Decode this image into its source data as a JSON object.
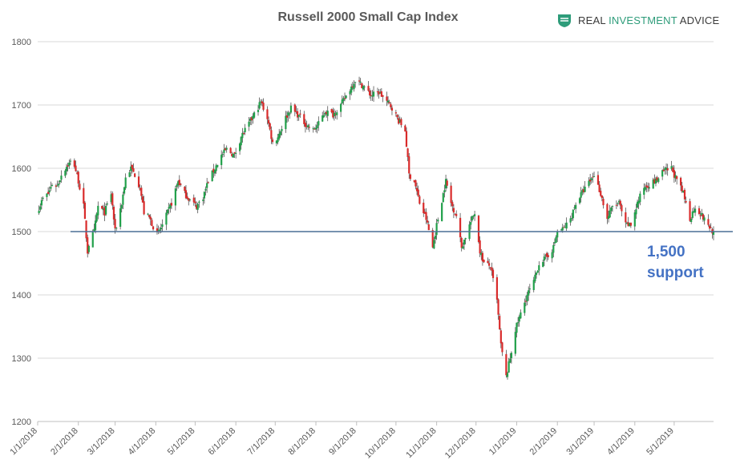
{
  "logo": {
    "brand_plain": "REAL ",
    "brand_accent": "INVESTMENT",
    "brand_rest": " ADVICE"
  },
  "colors": {
    "up": "#21a04a",
    "down": "#d92b2b",
    "support_line": "#4a6f95",
    "annotation": "#4472c4",
    "grid": "#d9d9d9"
  },
  "chart_data": {
    "type": "candlestick",
    "title": "Russell 2000 Small Cap Index",
    "ylim": [
      1200,
      1800
    ],
    "yticks": [
      1200,
      1300,
      1400,
      1500,
      1600,
      1700,
      1800
    ],
    "ytick_labels": [
      "1200",
      "1300",
      "1400",
      "1500",
      "1600",
      "1700",
      "1800"
    ],
    "xlim": [
      "2018-01-01",
      "2019-05-31"
    ],
    "xticks": [
      "2018-01-01",
      "2018-02-01",
      "2018-03-01",
      "2018-04-01",
      "2018-05-01",
      "2018-06-01",
      "2018-07-01",
      "2018-08-01",
      "2018-09-01",
      "2018-10-01",
      "2018-11-01",
      "2018-12-01",
      "2019-01-01",
      "2019-02-01",
      "2019-03-01",
      "2019-04-01",
      "2019-05-01"
    ],
    "xtick_labels": [
      "1/1/2018",
      "2/1/2018",
      "3/1/2018",
      "4/1/2018",
      "5/1/2018",
      "6/1/2018",
      "7/1/2018",
      "8/1/2018",
      "9/1/2018",
      "10/1/2018",
      "11/1/2018",
      "12/1/2018",
      "1/1/2019",
      "2/1/2019",
      "3/1/2019",
      "4/1/2019",
      "5/1/2019"
    ],
    "grid": "horizontal",
    "support": {
      "value": 1500,
      "label_line1": "1,500",
      "label_line2": "support"
    },
    "series": [
      {
        "close_path": [
          [
            "2018-01-02",
            1538
          ],
          [
            "2018-01-05",
            1552
          ],
          [
            "2018-01-09",
            1560
          ],
          [
            "2018-01-12",
            1575
          ],
          [
            "2018-01-16",
            1572
          ],
          [
            "2018-01-19",
            1590
          ],
          [
            "2018-01-23",
            1603
          ],
          [
            "2018-01-26",
            1610
          ],
          [
            "2018-01-29",
            1605
          ],
          [
            "2018-02-01",
            1580
          ],
          [
            "2018-02-05",
            1540
          ],
          [
            "2018-02-08",
            1468
          ],
          [
            "2018-02-09",
            1480
          ],
          [
            "2018-02-13",
            1500
          ],
          [
            "2018-02-16",
            1540
          ],
          [
            "2018-02-21",
            1530
          ],
          [
            "2018-02-26",
            1560
          ],
          [
            "2018-03-01",
            1500
          ],
          [
            "2018-03-06",
            1545
          ],
          [
            "2018-03-09",
            1585
          ],
          [
            "2018-03-13",
            1600
          ],
          [
            "2018-03-16",
            1590
          ],
          [
            "2018-03-20",
            1570
          ],
          [
            "2018-03-23",
            1530
          ],
          [
            "2018-03-27",
            1522
          ],
          [
            "2018-04-02",
            1495
          ],
          [
            "2018-04-06",
            1510
          ],
          [
            "2018-04-10",
            1530
          ],
          [
            "2018-04-13",
            1545
          ],
          [
            "2018-04-18",
            1580
          ],
          [
            "2018-04-23",
            1560
          ],
          [
            "2018-04-27",
            1550
          ],
          [
            "2018-05-02",
            1540
          ],
          [
            "2018-05-07",
            1555
          ],
          [
            "2018-05-11",
            1580
          ],
          [
            "2018-05-16",
            1600
          ],
          [
            "2018-05-21",
            1620
          ],
          [
            "2018-05-25",
            1630
          ],
          [
            "2018-05-31",
            1620
          ],
          [
            "2018-06-05",
            1650
          ],
          [
            "2018-06-11",
            1670
          ],
          [
            "2018-06-15",
            1685
          ],
          [
            "2018-06-20",
            1705
          ],
          [
            "2018-06-25",
            1680
          ],
          [
            "2018-06-29",
            1640
          ],
          [
            "2018-07-03",
            1650
          ],
          [
            "2018-07-09",
            1680
          ],
          [
            "2018-07-13",
            1695
          ],
          [
            "2018-07-18",
            1685
          ],
          [
            "2018-07-24",
            1670
          ],
          [
            "2018-07-30",
            1660
          ],
          [
            "2018-08-03",
            1670
          ],
          [
            "2018-08-08",
            1690
          ],
          [
            "2018-08-14",
            1685
          ],
          [
            "2018-08-20",
            1700
          ],
          [
            "2018-08-27",
            1725
          ],
          [
            "2018-08-31",
            1740
          ],
          [
            "2018-09-06",
            1730
          ],
          [
            "2018-09-12",
            1715
          ],
          [
            "2018-09-18",
            1720
          ],
          [
            "2018-09-24",
            1705
          ],
          [
            "2018-09-28",
            1696
          ],
          [
            "2018-10-03",
            1675
          ],
          [
            "2018-10-08",
            1660
          ],
          [
            "2018-10-11",
            1590
          ],
          [
            "2018-10-15",
            1580
          ],
          [
            "2018-10-19",
            1545
          ],
          [
            "2018-10-24",
            1520
          ],
          [
            "2018-10-29",
            1475
          ],
          [
            "2018-11-01",
            1510
          ],
          [
            "2018-11-06",
            1560
          ],
          [
            "2018-11-08",
            1580
          ],
          [
            "2018-11-12",
            1545
          ],
          [
            "2018-11-16",
            1525
          ],
          [
            "2018-11-20",
            1475
          ],
          [
            "2018-11-26",
            1510
          ],
          [
            "2018-11-30",
            1530
          ],
          [
            "2018-12-04",
            1470
          ],
          [
            "2018-12-07",
            1450
          ],
          [
            "2018-12-12",
            1445
          ],
          [
            "2018-12-17",
            1390
          ],
          [
            "2018-12-20",
            1320
          ],
          [
            "2018-12-24",
            1270
          ],
          [
            "2018-12-27",
            1300
          ],
          [
            "2018-12-31",
            1345
          ],
          [
            "2019-01-04",
            1370
          ],
          [
            "2019-01-09",
            1400
          ],
          [
            "2019-01-14",
            1420
          ],
          [
            "2019-01-18",
            1450
          ],
          [
            "2019-01-24",
            1460
          ],
          [
            "2019-01-29",
            1475
          ],
          [
            "2019-02-01",
            1500
          ],
          [
            "2019-02-06",
            1505
          ],
          [
            "2019-02-11",
            1520
          ],
          [
            "2019-02-15",
            1545
          ],
          [
            "2019-02-21",
            1565
          ],
          [
            "2019-02-26",
            1580
          ],
          [
            "2019-03-01",
            1590
          ],
          [
            "2019-03-06",
            1560
          ],
          [
            "2019-03-11",
            1520
          ],
          [
            "2019-03-15",
            1540
          ],
          [
            "2019-03-20",
            1545
          ],
          [
            "2019-03-25",
            1510
          ],
          [
            "2019-03-29",
            1510
          ],
          [
            "2019-04-03",
            1545
          ],
          [
            "2019-04-08",
            1570
          ],
          [
            "2019-04-12",
            1575
          ],
          [
            "2019-04-17",
            1580
          ],
          [
            "2019-04-23",
            1595
          ],
          [
            "2019-04-29",
            1600
          ],
          [
            "2019-05-03",
            1580
          ],
          [
            "2019-05-08",
            1560
          ],
          [
            "2019-05-13",
            1520
          ],
          [
            "2019-05-17",
            1540
          ],
          [
            "2019-05-22",
            1525
          ],
          [
            "2019-05-27",
            1510
          ],
          [
            "2019-05-31",
            1498
          ]
        ]
      }
    ]
  }
}
